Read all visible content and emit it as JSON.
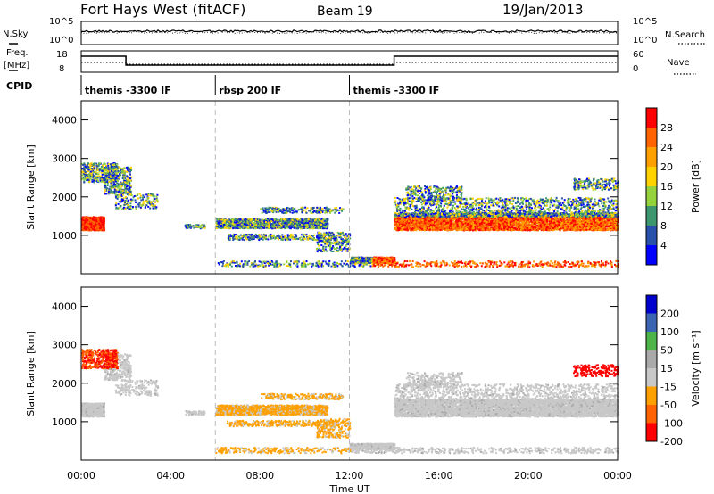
{
  "header": {
    "station": "Fort Hays West (fitACF)",
    "beam": "Beam 19",
    "date": "19/Jan/2013"
  },
  "top_panels": {
    "nsky_label": "N.Sky",
    "nsky_ticks": [
      "10^5",
      "10^0"
    ],
    "nsearch_label": "N.Search",
    "nsearch_ticks": [
      "10^5",
      "10^0"
    ],
    "freq_label": "Freq.",
    "freq_unit": "[MHz]",
    "freq_ticks": [
      "18",
      "8"
    ],
    "nave_label": "Nave",
    "nave_ticks": [
      "60",
      "0"
    ],
    "cpid_label": "CPID",
    "cpid_segments": [
      {
        "label": "themis -3300 IF",
        "start": 0,
        "end": 6
      },
      {
        "label": "rbsp 200 IF",
        "start": 6,
        "end": 12
      },
      {
        "label": "themis -3300 IF",
        "start": 12,
        "end": 24
      }
    ]
  },
  "chart_data": [
    {
      "type": "heatmap",
      "name": "power",
      "ylabel": "Slant Range [km]",
      "yticks": [
        1000,
        2000,
        3000,
        4000
      ],
      "ylim": [
        0,
        4500
      ],
      "xlim": [
        0,
        24
      ],
      "colorbar": {
        "label": "Power [dB]",
        "ticks": [
          "28",
          "24",
          "20",
          "16",
          "12",
          "8",
          "4"
        ],
        "colors": [
          "#ff0000",
          "#ff6400",
          "#ffa000",
          "#ffd200",
          "#96d23c",
          "#3c966e",
          "#2850aa",
          "#0000ff"
        ]
      }
    },
    {
      "type": "heatmap",
      "name": "velocity",
      "ylabel": "Slant Range [km]",
      "yticks": [
        1000,
        2000,
        3000,
        4000
      ],
      "ylim": [
        0,
        4500
      ],
      "xlim": [
        0,
        24
      ],
      "xlabel": "Time UT",
      "xticks": [
        "00:00",
        "04:00",
        "08:00",
        "12:00",
        "16:00",
        "20:00",
        "00:00"
      ],
      "colorbar": {
        "label": "Velocity [m s⁻¹]",
        "ticks": [
          "200",
          "100",
          "50",
          "15",
          "-15",
          "-50",
          "-100",
          "-200"
        ],
        "colors": [
          "#0000cc",
          "#3c64b4",
          "#4cb448",
          "#aaaaaa",
          "#c8c8c8",
          "#ffa000",
          "#ff6400",
          "#ff0000"
        ]
      }
    }
  ]
}
